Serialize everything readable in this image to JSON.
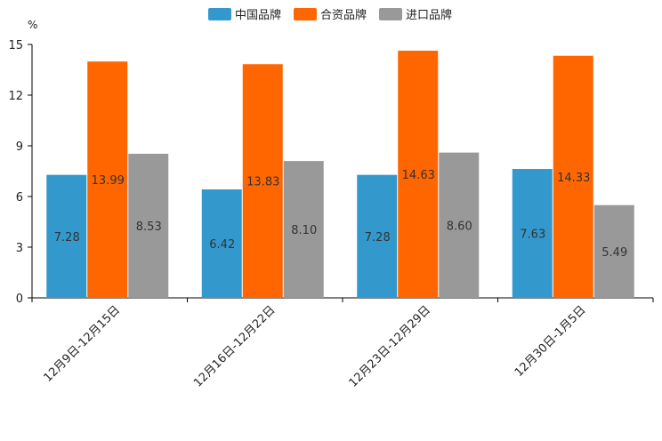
{
  "chart_data": {
    "type": "bar",
    "ylabel": "%",
    "ylim": [
      0,
      15
    ],
    "yticks": [
      0,
      3,
      6,
      9,
      12,
      15
    ],
    "categories": [
      "12月9日-12月15日",
      "12月16日-12月22日",
      "12月23日-12月29日",
      "12月30日-1月5日"
    ],
    "series": [
      {
        "name": "中国品牌",
        "color": "#3399cc",
        "values": [
          7.28,
          6.42,
          7.28,
          7.63
        ],
        "labels": [
          "7.28",
          "6.42",
          "7.28",
          "7.63"
        ]
      },
      {
        "name": "合资品牌",
        "color": "#ff6600",
        "values": [
          13.99,
          13.83,
          14.63,
          14.33
        ],
        "labels": [
          "13.99",
          "13.83",
          "14.63",
          "14.33"
        ]
      },
      {
        "name": "进口品牌",
        "color": "#999999",
        "values": [
          8.53,
          8.1,
          8.6,
          5.49
        ],
        "labels": [
          "8.53",
          "8.10",
          "8.60",
          "5.49"
        ]
      }
    ],
    "legend_position": "top-center"
  }
}
